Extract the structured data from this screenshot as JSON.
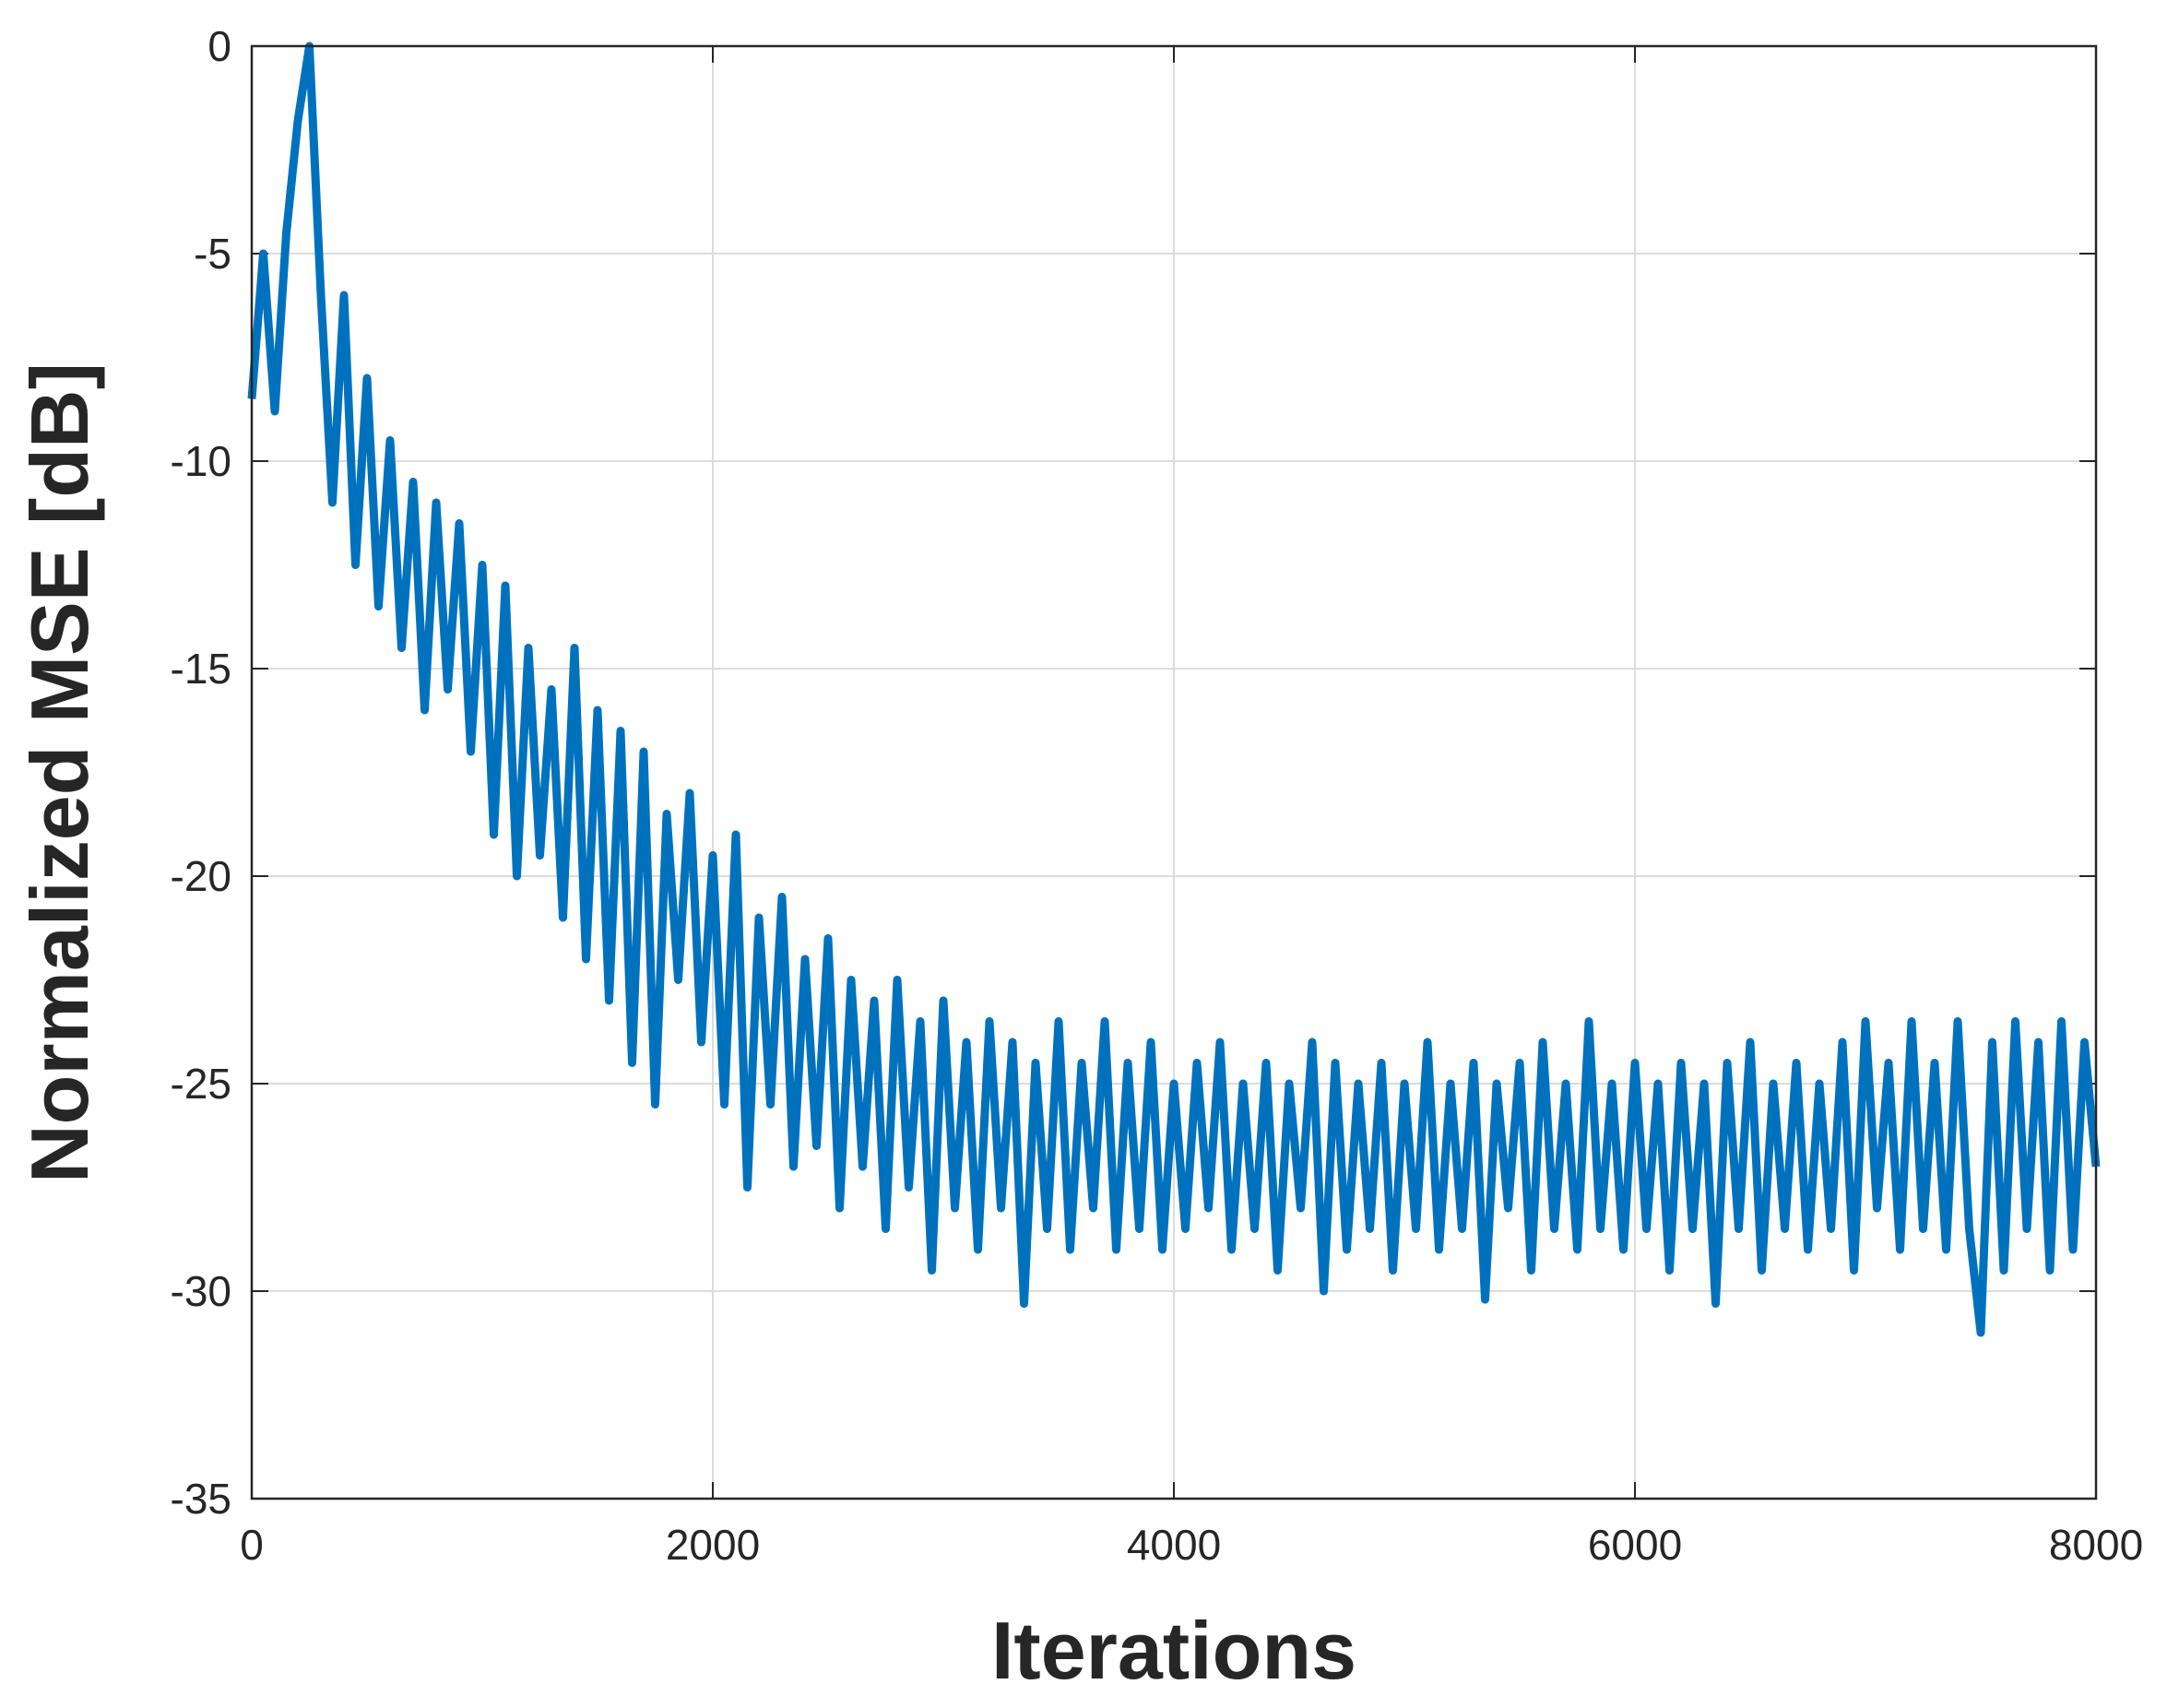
{
  "chart_data": {
    "type": "line",
    "x_label": "Iterations",
    "y_label": "Normalized MSE [dB]",
    "x": [
      0,
      50,
      100,
      150,
      200,
      250,
      300,
      350,
      400,
      450,
      500,
      550,
      600,
      650,
      700,
      750,
      800,
      850,
      900,
      950,
      1000,
      1050,
      1100,
      1150,
      1200,
      1250,
      1300,
      1350,
      1400,
      1450,
      1500,
      1550,
      1600,
      1650,
      1700,
      1750,
      1800,
      1850,
      1900,
      1950,
      2000,
      2050,
      2100,
      2150,
      2200,
      2250,
      2300,
      2350,
      2400,
      2450,
      2500,
      2550,
      2600,
      2650,
      2700,
      2750,
      2800,
      2850,
      2900,
      2950,
      3000,
      3050,
      3100,
      3150,
      3200,
      3250,
      3300,
      3350,
      3400,
      3450,
      3500,
      3550,
      3600,
      3650,
      3700,
      3750,
      3800,
      3850,
      3900,
      3950,
      4000,
      4050,
      4100,
      4150,
      4200,
      4250,
      4300,
      4350,
      4400,
      4450,
      4500,
      4550,
      4600,
      4650,
      4700,
      4750,
      4800,
      4850,
      4900,
      4950,
      5000,
      5050,
      5100,
      5150,
      5200,
      5250,
      5300,
      5350,
      5400,
      5450,
      5500,
      5550,
      5600,
      5650,
      5700,
      5750,
      5800,
      5850,
      5900,
      5950,
      6000,
      6050,
      6100,
      6150,
      6200,
      6250,
      6300,
      6350,
      6400,
      6450,
      6500,
      6550,
      6600,
      6650,
      6700,
      6750,
      6800,
      6850,
      6900,
      6950,
      7000,
      7050,
      7100,
      7150,
      7200,
      7250,
      7300,
      7350,
      7400,
      7450,
      7500,
      7550,
      7600,
      7650,
      7700,
      7750,
      7800,
      7850,
      7900,
      7950,
      8000
    ],
    "series": [
      {
        "color": "#0072bd",
        "values": [
          -8.5,
          -5,
          -8.8,
          -4.5,
          -1.8,
          0,
          -6,
          -11,
          -6,
          -12.5,
          -8,
          -13.5,
          -9.5,
          -14.5,
          -10.5,
          -16,
          -11,
          -15.5,
          -11.5,
          -17,
          -12.5,
          -19,
          -13,
          -20,
          -14.5,
          -19.5,
          -15.5,
          -21,
          -14.5,
          -22,
          -16,
          -23,
          -16.5,
          -24.5,
          -17,
          -25.5,
          -18.5,
          -22.5,
          -18,
          -24,
          -19.5,
          -25.5,
          -19,
          -27.5,
          -21,
          -25.5,
          -20.5,
          -27,
          -22,
          -26.5,
          -21.5,
          -28,
          -22.5,
          -27,
          -23,
          -28.5,
          -22.5,
          -27.5,
          -23.5,
          -29.5,
          -23,
          -28,
          -24,
          -29,
          -23.5,
          -28,
          -24,
          -30.3,
          -24.5,
          -28.5,
          -23.5,
          -29,
          -24.5,
          -28,
          -23.5,
          -29,
          -24.5,
          -28.5,
          -24,
          -29,
          -25,
          -28.5,
          -24.5,
          -28,
          -24,
          -29,
          -25,
          -28.5,
          -24.5,
          -29.5,
          -25,
          -28,
          -24,
          -30,
          -24.5,
          -29,
          -25,
          -28.5,
          -24.5,
          -29.5,
          -25,
          -28.5,
          -24,
          -29,
          -25,
          -28.5,
          -24.5,
          -30.2,
          -25,
          -28,
          -24.5,
          -29.5,
          -24,
          -28.5,
          -25,
          -29,
          -23.5,
          -28.5,
          -25,
          -29,
          -24.5,
          -28.5,
          -25,
          -29.5,
          -24.5,
          -28.5,
          -25,
          -30.3,
          -24.5,
          -28.5,
          -24,
          -29.5,
          -25,
          -28.5,
          -24.5,
          -29,
          -25,
          -28.5,
          -24,
          -29.5,
          -23.5,
          -28,
          -24.5,
          -29,
          -23.5,
          -28.5,
          -24.5,
          -29,
          -23.5,
          -28.5,
          -31,
          -24,
          -29.5,
          -23.5,
          -28.5,
          -24,
          -29.5,
          -23.5,
          -29,
          -24,
          -27
        ]
      }
    ],
    "xlim": [
      0,
      8000
    ],
    "xticks": [
      0,
      2000,
      4000,
      6000,
      8000
    ],
    "ylim": [
      -35,
      0
    ],
    "yticks": [
      -35,
      -30,
      -25,
      -20,
      -15,
      -10,
      -5,
      0
    ],
    "grid": true
  }
}
